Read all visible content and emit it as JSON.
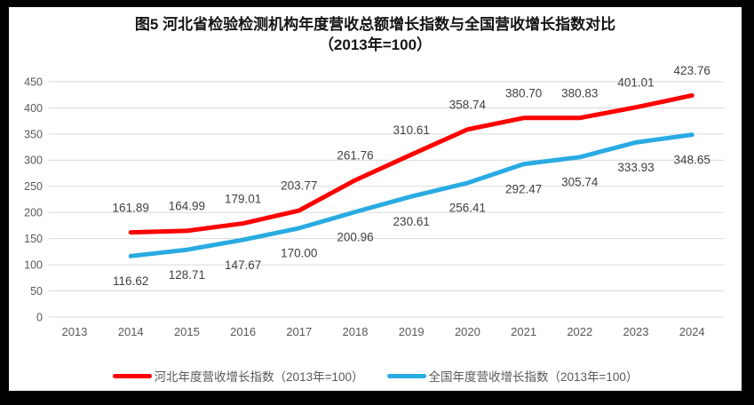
{
  "title": {
    "line1": "图5  河北省检验检测机构年度营收总额增长指数与全国营收增长指数对比",
    "line2": "（2013年=100）"
  },
  "chart_data": {
    "type": "line",
    "title": "图5 河北省检验检测机构年度营收总额增长指数与全国营收增长指数对比（2013年=100）",
    "title_lines": [
      "图5  河北省检验检测机构年度营收总额增长指数与全国营收增长指数对比",
      "（2013年=100）"
    ],
    "categories": [
      "2013",
      "2014",
      "2015",
      "2016",
      "2017",
      "2018",
      "2019",
      "2020",
      "2021",
      "2022",
      "2023",
      "2024"
    ],
    "y_ticks": [
      0,
      50,
      100,
      150,
      200,
      250,
      300,
      350,
      400,
      450
    ],
    "ylim": [
      0,
      450
    ],
    "xlabel": "",
    "ylabel": "",
    "grid": true,
    "legend_position": "bottom",
    "series": [
      {
        "name": "河北年度营收增长指数（2013年=100）",
        "color": "#FF0000",
        "label_position": "above",
        "values": [
          null,
          161.89,
          164.99,
          179.01,
          203.77,
          261.76,
          310.61,
          358.74,
          380.7,
          380.83,
          401.01,
          423.76
        ],
        "labels": [
          "",
          "161.89",
          "164.99",
          "179.01",
          "203.77",
          "261.76",
          "310.61",
          "358.74",
          "380.70",
          "380.83",
          "401.01",
          "423.76"
        ]
      },
      {
        "name": "全国年度营收增长指数（2013年=100）",
        "color": "#29ABE2",
        "label_position": "below",
        "values": [
          null,
          116.62,
          128.71,
          147.67,
          170.0,
          200.96,
          230.61,
          256.41,
          292.47,
          305.74,
          333.93,
          348.65
        ],
        "labels": [
          "",
          "116.62",
          "128.71",
          "147.67",
          "170.00",
          "200.96",
          "230.61",
          "256.41",
          "292.47",
          "305.74",
          "333.93",
          "348.65"
        ]
      }
    ],
    "colors": {
      "grid": "#D9D9D9",
      "axis_text": "#595959",
      "data_label": "#404040",
      "legend_text": "#595959"
    }
  }
}
